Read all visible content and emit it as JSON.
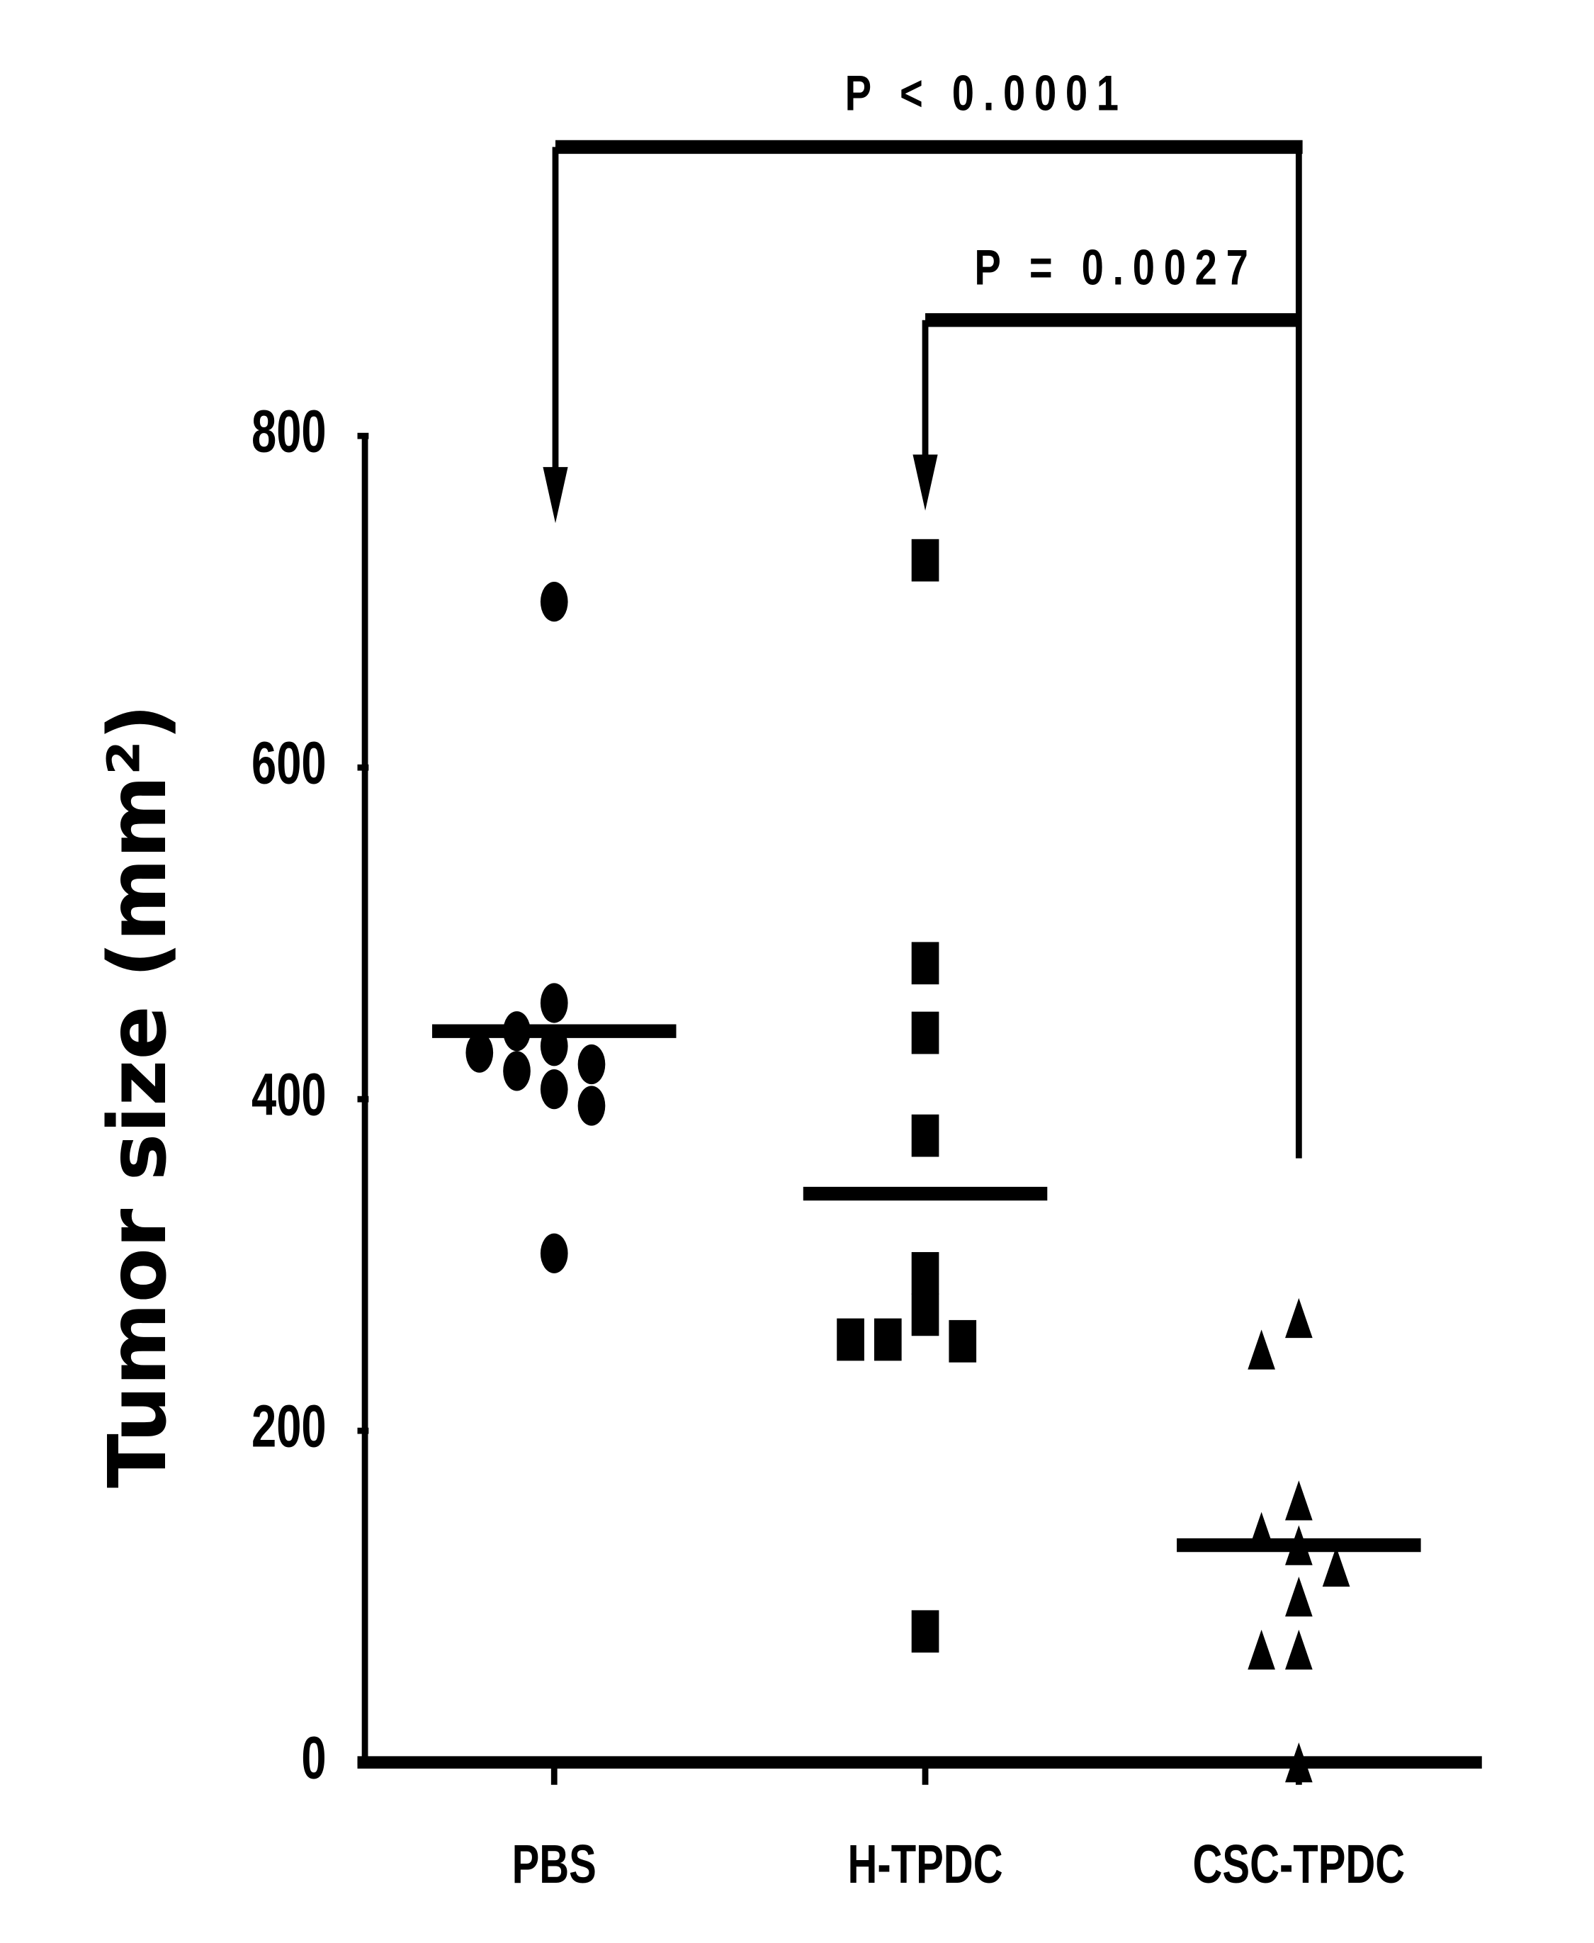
{
  "chart_data": {
    "type": "dotplot",
    "y_label": "Tumor size (mm²)",
    "categories": [
      "PBS",
      "H-TPDC",
      "CSC-TPDC"
    ],
    "markers": [
      "circle",
      "square",
      "triangle"
    ],
    "color": "#000000",
    "points": [
      [
        700,
        458,
        441,
        432,
        421,
        417,
        428,
        406,
        396,
        307
      ],
      [
        725,
        482,
        440,
        378,
        295,
        270,
        255,
        254,
        255,
        79
      ],
      [
        268,
        249,
        158,
        139,
        131,
        118,
        100,
        68,
        68,
        0
      ]
    ],
    "center_lines": [
      441,
      343,
      131
    ],
    "ylim": [
      0,
      800
    ],
    "yticks": [
      0,
      200,
      400,
      600,
      800
    ],
    "annotations": [
      "P < 0.0001",
      "P = 0.0027"
    ]
  }
}
